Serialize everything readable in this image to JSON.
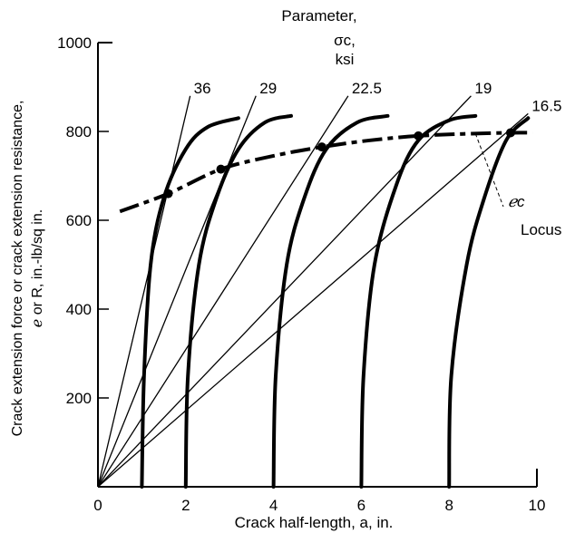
{
  "chart_data": {
    "type": "line",
    "xlabel": "Crack half-length, a, in.",
    "ylabel_line1": "Crack extension force or crack extension resistance,",
    "ylabel_line2": "ℯ or R, in.-lb/sq in.",
    "xlim": [
      0,
      10
    ],
    "ylim": [
      0,
      1000
    ],
    "x_ticks": [
      "0",
      "2",
      "4",
      "6",
      "8",
      "10"
    ],
    "y_ticks": [
      "200",
      "400",
      "600",
      "800",
      "1000"
    ],
    "x_tick_values": [
      0,
      2,
      4,
      6,
      8,
      10
    ],
    "y_tick_values": [
      200,
      400,
      600,
      800,
      1000
    ],
    "grid": false,
    "parameter_header": {
      "line1": "Parameter,",
      "line2": "σc,",
      "line3": "ksi"
    },
    "locus_label": {
      "symbol": "ℯc",
      "text": "Locus"
    },
    "g_lines": [
      {
        "label": "36",
        "end": [
          2.1,
          880
        ]
      },
      {
        "label": "29",
        "end": [
          3.6,
          880
        ]
      },
      {
        "label": "22.5",
        "end": [
          5.7,
          880
        ]
      },
      {
        "label": "19",
        "end": [
          8.5,
          880
        ]
      },
      {
        "label": "16.5",
        "end": [
          9.8,
          840
        ]
      }
    ],
    "r_curves": [
      {
        "points": [
          [
            1.0,
            0
          ],
          [
            1.05,
            250
          ],
          [
            1.2,
            500
          ],
          [
            1.5,
            650
          ],
          [
            2.0,
            760
          ],
          [
            2.5,
            810
          ],
          [
            3.2,
            830
          ]
        ]
      },
      {
        "points": [
          [
            2.0,
            0
          ],
          [
            2.05,
            250
          ],
          [
            2.3,
            500
          ],
          [
            2.7,
            650
          ],
          [
            3.2,
            760
          ],
          [
            3.8,
            820
          ],
          [
            4.4,
            835
          ]
        ]
      },
      {
        "points": [
          [
            4.0,
            0
          ],
          [
            4.05,
            250
          ],
          [
            4.3,
            500
          ],
          [
            4.7,
            650
          ],
          [
            5.2,
            760
          ],
          [
            5.9,
            820
          ],
          [
            6.6,
            835
          ]
        ]
      },
      {
        "points": [
          [
            6.0,
            0
          ],
          [
            6.05,
            250
          ],
          [
            6.3,
            500
          ],
          [
            6.8,
            680
          ],
          [
            7.3,
            780
          ],
          [
            8.0,
            825
          ],
          [
            8.6,
            835
          ]
        ]
      },
      {
        "points": [
          [
            8.0,
            0
          ],
          [
            8.05,
            250
          ],
          [
            8.4,
            500
          ],
          [
            8.8,
            650
          ],
          [
            9.3,
            780
          ],
          [
            9.8,
            830
          ]
        ]
      }
    ],
    "gc_locus": {
      "points": [
        [
          0.5,
          620
        ],
        [
          1.6,
          660
        ],
        [
          2.8,
          715
        ],
        [
          4.0,
          745
        ],
        [
          5.1,
          765
        ],
        [
          6.2,
          780
        ],
        [
          7.3,
          790
        ],
        [
          8.5,
          795
        ],
        [
          9.4,
          797
        ],
        [
          9.9,
          797
        ]
      ],
      "critical_points": [
        [
          1.6,
          660
        ],
        [
          2.8,
          715
        ],
        [
          5.1,
          765
        ],
        [
          7.3,
          790
        ],
        [
          9.4,
          797
        ]
      ]
    }
  }
}
